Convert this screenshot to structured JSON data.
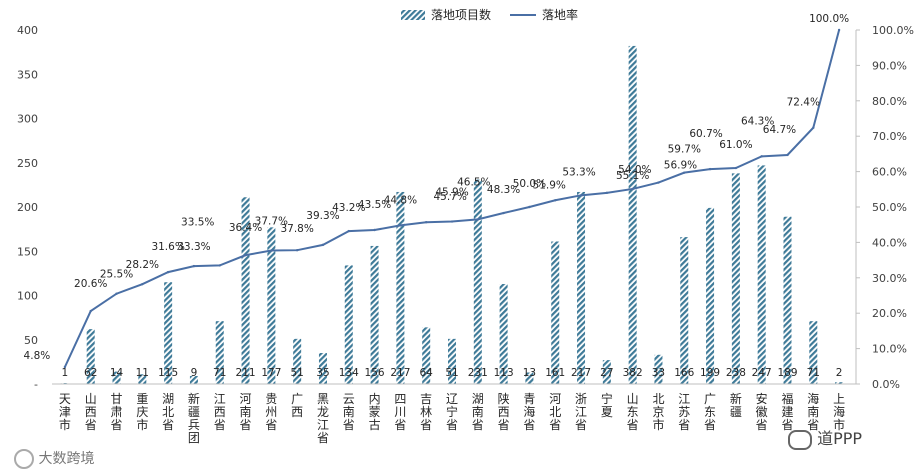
{
  "chart_data": {
    "type": "bar+line",
    "categories": [
      "天津市",
      "山西省",
      "甘肃省",
      "重庆市",
      "湖北省",
      "新疆兵团",
      "江西省",
      "河南省",
      "贵州省",
      "广西",
      "黑龙江省",
      "云南省",
      "内蒙古",
      "四川省",
      "吉林省",
      "辽宁省",
      "湖南省",
      "陕西省",
      "青海省",
      "河北省",
      "浙江省",
      "宁夏",
      "山东省",
      "北京市",
      "江苏省",
      "广东省",
      "新疆",
      "安徽省",
      "福建省",
      "海南省",
      "上海市"
    ],
    "series": [
      {
        "name": "落地项目数",
        "type": "bar",
        "axis": "left",
        "color": "#3e7a98",
        "values": [
          1,
          62,
          14,
          11,
          115,
          9,
          71,
          211,
          177,
          51,
          35,
          134,
          156,
          217,
          64,
          51,
          231,
          113,
          13,
          161,
          217,
          27,
          382,
          33,
          166,
          199,
          238,
          247,
          189,
          71,
          2
        ],
        "labels": [
          "1",
          "62",
          "14",
          "11",
          "115",
          "9",
          "71",
          "211",
          "177",
          "51",
          "35",
          "134",
          "156",
          "217",
          "64",
          "51",
          "231",
          "113",
          "13",
          "161",
          "217",
          "27",
          "382",
          "33",
          "166",
          "199",
          "238",
          "247",
          "189",
          "71",
          "2"
        ]
      },
      {
        "name": "落地率",
        "type": "line",
        "axis": "right",
        "color": "#4a6fa5",
        "values": [
          4.8,
          20.6,
          25.5,
          28.2,
          31.6,
          33.3,
          33.5,
          36.4,
          37.7,
          37.8,
          39.3,
          43.2,
          43.5,
          44.8,
          45.7,
          45.9,
          46.5,
          48.3,
          50.0,
          51.9,
          53.3,
          54.0,
          55.1,
          56.9,
          59.7,
          60.7,
          61.0,
          64.3,
          64.7,
          72.4,
          100.0
        ],
        "labels": [
          "4.8%",
          "20.6%",
          "25.5%",
          "28.2%",
          "31.6%",
          "33.3%",
          "33.5%",
          "36.4%",
          "37.7%",
          "37.8%",
          "39.3%",
          "43.2%",
          "43.5%",
          "44.8%",
          "45.7%",
          "45.9%",
          "46.5%",
          "48.3%",
          "50.0%",
          "51.9%",
          "53.3%",
          "54.0%",
          "55.1%",
          "56.9%",
          "59.7%",
          "60.7%",
          "61.0%",
          "64.3%",
          "64.7%",
          "72.4%",
          "100.0%"
        ]
      }
    ],
    "y_left": {
      "min": 0,
      "max": 400,
      "ticks": [
        "-",
        "50",
        "100",
        "150",
        "200",
        "250",
        "300",
        "350",
        "400"
      ]
    },
    "y_right": {
      "min": 0,
      "max": 100,
      "ticks": [
        "0.0%",
        "10.0%",
        "20.0%",
        "30.0%",
        "40.0%",
        "50.0%",
        "60.0%",
        "70.0%",
        "80.0%",
        "90.0%",
        "100.0%"
      ]
    },
    "legend": [
      "落地项目数",
      "落地率"
    ],
    "legend_position": "top-center",
    "grid": false
  },
  "watermarks": {
    "left": "大数跨境",
    "right": "道PPP"
  }
}
